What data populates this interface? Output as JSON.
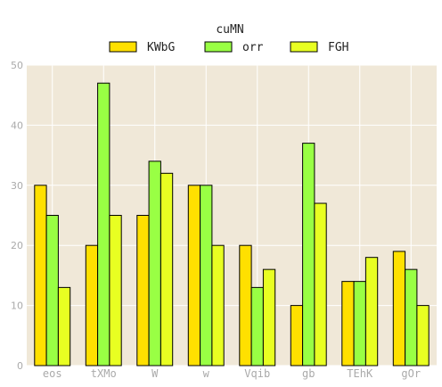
{
  "chart_data": {
    "type": "bar",
    "title": "",
    "legend_title": "cuMN",
    "legend_placement": "top-center",
    "categories": [
      "eos",
      "tXMo",
      "W",
      "w",
      "Vqib",
      "gb",
      "TEhK",
      "gOr"
    ],
    "series": [
      {
        "name": "KWbG",
        "color": "#ffe000",
        "values": [
          30,
          20,
          25,
          30,
          20,
          10,
          14,
          19
        ]
      },
      {
        "name": "orr",
        "color": "#99ff44",
        "values": [
          25,
          47,
          34,
          30,
          13,
          37,
          14,
          16
        ]
      },
      {
        "name": "FGH",
        "color": "#e8ff22",
        "values": [
          13,
          25,
          32,
          20,
          16,
          27,
          18,
          10
        ]
      }
    ],
    "ylim": [
      0,
      50
    ],
    "yticks": [
      0,
      10,
      20,
      30,
      40,
      50
    ],
    "xlabel": "",
    "ylabel": "",
    "grid": true,
    "background_color": "#f0e8d8",
    "grid_color": "#ffffff",
    "tick_label_color": "#aaaaaa"
  }
}
